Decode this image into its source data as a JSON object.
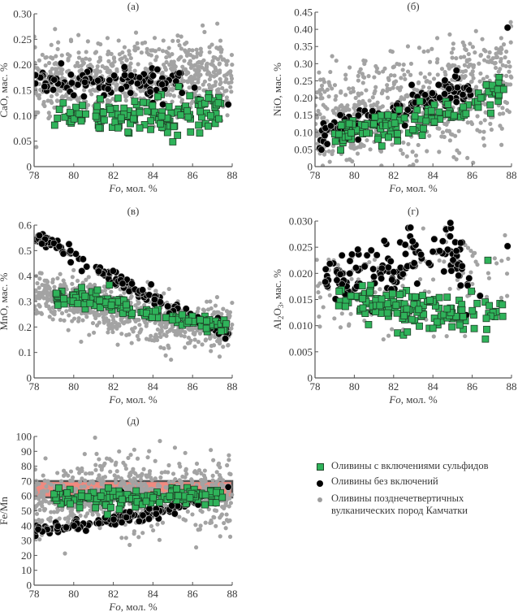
{
  "figure": {
    "legend": [
      {
        "label": "Оливины с включениями сульфидов",
        "marker": "green-square",
        "color": "#2fb35a"
      },
      {
        "label": "Оливины без включений",
        "marker": "black-circle",
        "color": "#000000"
      },
      {
        "label_line1": "Оливины позднечетвертичных",
        "label_line2": "вулканических пород Камчатки",
        "marker": "gray-dot",
        "color": "#9e9e9e"
      }
    ]
  },
  "chart_data": [
    {
      "id": "a",
      "type": "scatter",
      "title": "(а)",
      "xlabel_italic": "Fo",
      "xlabel_rest": ", мол. %",
      "ylabel": "CaO, мас. %",
      "xlim": [
        78,
        88
      ],
      "ylim": [
        0,
        0.3
      ],
      "xticks": [
        "78",
        "80",
        "82",
        "84",
        "86",
        "88"
      ],
      "yticks": [
        "0",
        "0.05",
        "0.10",
        "0.15",
        "0.20",
        "0.25",
        "0.30"
      ],
      "background_cloud": {
        "x_range": [
          78,
          88
        ],
        "center_trend": [
          [
            78,
            0.16
          ],
          [
            82,
            0.17
          ],
          [
            84,
            0.18
          ],
          [
            86,
            0.18
          ],
          [
            88,
            0.18
          ]
        ],
        "spread": 0.035,
        "n": 700
      },
      "series": [
        {
          "name": "Оливины без включений",
          "trend": [
            [
              78,
              0.175
            ],
            [
              80,
              0.16
            ],
            [
              82,
              0.165
            ],
            [
              84,
              0.165
            ],
            [
              85.5,
              0.17
            ]
          ],
          "spread": 0.012,
          "n": 120,
          "extra": [
            [
              80,
              0.14
            ],
            [
              82.4,
              0.092
            ],
            [
              86.1,
              0.155
            ],
            [
              86.3,
              0.133
            ],
            [
              86.4,
              0.105
            ],
            [
              87.8,
              0.122
            ],
            [
              84,
              0.125
            ],
            [
              84.5,
              0.122
            ]
          ]
        },
        {
          "name": "Оливины с включениями сульфидов",
          "trend": [
            [
              79,
              0.098
            ],
            [
              81,
              0.1
            ],
            [
              83,
              0.095
            ],
            [
              85,
              0.1
            ],
            [
              87.5,
              0.124
            ]
          ],
          "spread": 0.018,
          "n": 150,
          "extra": [
            [
              85.3,
              0.157
            ],
            [
              86.8,
              0.135
            ],
            [
              87.3,
              0.125
            ],
            [
              85.9,
              0.068
            ]
          ]
        }
      ]
    },
    {
      "id": "b",
      "type": "scatter",
      "title": "(б)",
      "xlabel_italic": "Fo",
      "xlabel_rest": ", мол. %",
      "ylabel": "NiO, мас. %",
      "xlim": [
        78,
        88
      ],
      "ylim": [
        0,
        0.45
      ],
      "xticks": [
        "78",
        "80",
        "82",
        "84",
        "86",
        "88"
      ],
      "yticks": [
        "0",
        "0.05",
        "0.10",
        "0.15",
        "0.20",
        "0.25",
        "0.30",
        "0.35",
        "0.40",
        "0.45"
      ],
      "background_cloud": {
        "x_range": [
          78,
          88
        ],
        "center_trend": [
          [
            78,
            0.13
          ],
          [
            82,
            0.16
          ],
          [
            86,
            0.22
          ],
          [
            88,
            0.25
          ]
        ],
        "spread": 0.08,
        "n": 650
      },
      "series": [
        {
          "name": "Оливины без включений",
          "trend": [
            [
              78.2,
              0.08
            ],
            [
              80,
              0.13
            ],
            [
              82,
              0.16
            ],
            [
              84,
              0.2
            ],
            [
              86,
              0.21
            ]
          ],
          "spread": 0.022,
          "n": 140,
          "extra": [
            [
              87.8,
              0.405
            ],
            [
              85.2,
              0.28
            ],
            [
              86.3,
              0.19
            ]
          ]
        },
        {
          "name": "Оливины с включениями сульфидов",
          "trend": [
            [
              79,
              0.1
            ],
            [
              81,
              0.11
            ],
            [
              83,
              0.13
            ],
            [
              85,
              0.16
            ],
            [
              87.5,
              0.22
            ]
          ],
          "spread": 0.022,
          "n": 130,
          "extra": [
            [
              81.4,
              0.06
            ],
            [
              82.2,
              0.075
            ],
            [
              87.3,
              0.225
            ],
            [
              87.6,
              0.225
            ]
          ]
        }
      ]
    },
    {
      "id": "c",
      "type": "scatter",
      "title": "(в)",
      "xlabel_italic": "Fo",
      "xlabel_rest": ", мол. %",
      "ylabel": "MnO, мас. %",
      "xlim": [
        78,
        88
      ],
      "ylim": [
        0,
        0.6
      ],
      "xticks": [
        "78",
        "80",
        "82",
        "84",
        "86",
        "88"
      ],
      "yticks": [
        "0",
        "0.1",
        "0.2",
        "0.3",
        "0.4",
        "0.5",
        "0.6"
      ],
      "background_cloud": {
        "x_range": [
          78,
          88
        ],
        "center_trend": [
          [
            78,
            0.34
          ],
          [
            80,
            0.3
          ],
          [
            82,
            0.27
          ],
          [
            84,
            0.23
          ],
          [
            86,
            0.21
          ],
          [
            88,
            0.2
          ]
        ],
        "spread": 0.045,
        "n": 800
      },
      "series": [
        {
          "name": "Оливины без включений",
          "trend": [
            [
              78.1,
              0.55
            ],
            [
              80,
              0.48
            ],
            [
              82,
              0.39
            ],
            [
              84,
              0.31
            ],
            [
              86,
              0.23
            ],
            [
              87.9,
              0.18
            ]
          ],
          "spread": 0.015,
          "n": 150,
          "extra": [
            [
              82.5,
              0.265
            ]
          ]
        },
        {
          "name": "Оливины с включениями сульфидов",
          "trend": [
            [
              79,
              0.32
            ],
            [
              80.5,
              0.31
            ],
            [
              82,
              0.29
            ],
            [
              84,
              0.25
            ],
            [
              86,
              0.225
            ],
            [
              87.7,
              0.2
            ]
          ],
          "spread": 0.015,
          "n": 130,
          "extra": [
            [
              80.4,
              0.355
            ],
            [
              81.8,
              0.365
            ],
            [
              81.2,
              0.345
            ]
          ]
        }
      ]
    },
    {
      "id": "d",
      "type": "scatter",
      "title": "(г)",
      "xlabel_italic": "Fo",
      "xlabel_rest": ", мол. %",
      "ylabel_main": "Al",
      "ylabel_sub1": "2",
      "ylabel_mid": "O",
      "ylabel_sub2": "3",
      "ylabel_rest": ", мас. %",
      "xlim": [
        78,
        88
      ],
      "ylim": [
        0,
        0.03
      ],
      "xticks": [
        "78",
        "80",
        "82",
        "84",
        "86",
        "88"
      ],
      "yticks": [
        "0",
        "0.005",
        "0.010",
        "0.015",
        "0.020",
        "0.025",
        "0.030"
      ],
      "background_cloud": {
        "x_range": [
          78,
          88
        ],
        "center_trend": [
          [
            79,
            0.015
          ],
          [
            84,
            0.02
          ],
          [
            87,
            0.018
          ],
          [
            88,
            0.019
          ]
        ],
        "spread": 0.005,
        "n": 120
      },
      "series": [
        {
          "name": "Оливины без включений",
          "trend": [
            [
              78.5,
              0.018
            ],
            [
              80,
              0.02
            ],
            [
              81,
              0.022
            ],
            [
              82,
              0.019
            ],
            [
              83,
              0.024
            ],
            [
              84,
              0.025
            ],
            [
              85,
              0.025
            ],
            [
              86,
              0.016
            ]
          ],
          "spread": 0.0025,
          "n": 140,
          "extra": [
            [
              87.8,
              0.0252
            ],
            [
              86.4,
              0.0157
            ],
            [
              85.7,
              0.012
            ],
            [
              80.9,
              0.0127
            ]
          ]
        },
        {
          "name": "Оливины с включениями сульфидов",
          "trend": [
            [
              79.2,
              0.016
            ],
            [
              80.5,
              0.015
            ],
            [
              82,
              0.013
            ],
            [
              84,
              0.013
            ],
            [
              85.3,
              0.012
            ],
            [
              86.5,
              0.013
            ],
            [
              87.6,
              0.013
            ]
          ],
          "spread": 0.0018,
          "n": 150,
          "extra": [
            [
              86.8,
              0.0225
            ],
            [
              82.2,
              0.0086
            ],
            [
              82.5,
              0.0082
            ],
            [
              82.7,
              0.0088
            ],
            [
              84,
              0.0095
            ]
          ]
        }
      ]
    },
    {
      "id": "e",
      "type": "scatter",
      "title": "(д)",
      "xlabel_italic": "Fo",
      "xlabel_rest": ", мол. %",
      "ylabel": "Fe/Mn",
      "xlim": [
        78,
        88
      ],
      "ylim": [
        0,
        100
      ],
      "xticks": [
        "78",
        "80",
        "82",
        "84",
        "86",
        "88"
      ],
      "yticks": [
        "0",
        "10",
        "20",
        "30",
        "40",
        "50",
        "60",
        "70",
        "80",
        "90",
        "100"
      ],
      "band": {
        "y_from": 59,
        "y_to": 70,
        "fill": "#f08a80",
        "stroke": "#555555"
      },
      "background_cloud": {
        "x_range": [
          78,
          88
        ],
        "center_trend": [
          [
            78,
            58
          ],
          [
            82,
            60
          ],
          [
            86,
            62
          ],
          [
            88,
            60
          ]
        ],
        "spread": 12,
        "n": 700
      },
      "series": [
        {
          "name": "Оливины без включений",
          "trend": [
            [
              78,
              36
            ],
            [
              80,
              40
            ],
            [
              81.5,
              42
            ],
            [
              83,
              46
            ],
            [
              84.5,
              50
            ],
            [
              85.8,
              56
            ],
            [
              86.5,
              59
            ]
          ],
          "spread": 2.0,
          "n": 130,
          "extra": [
            [
              82.4,
              63
            ],
            [
              87.8,
              66
            ],
            [
              84.5,
              59
            ],
            [
              83.3,
              43
            ]
          ]
        },
        {
          "name": "Оливины с включениями сульфидов",
          "trend": [
            [
              79,
              59.5
            ],
            [
              82,
              59
            ],
            [
              84,
              58
            ],
            [
              86,
              60
            ],
            [
              87.5,
              61
            ]
          ],
          "spread": 2.5,
          "n": 150,
          "extra": [
            [
              80.3,
              52
            ],
            [
              81.1,
              52
            ],
            [
              81.7,
              47.5
            ],
            [
              82.3,
              51
            ]
          ]
        }
      ]
    }
  ]
}
